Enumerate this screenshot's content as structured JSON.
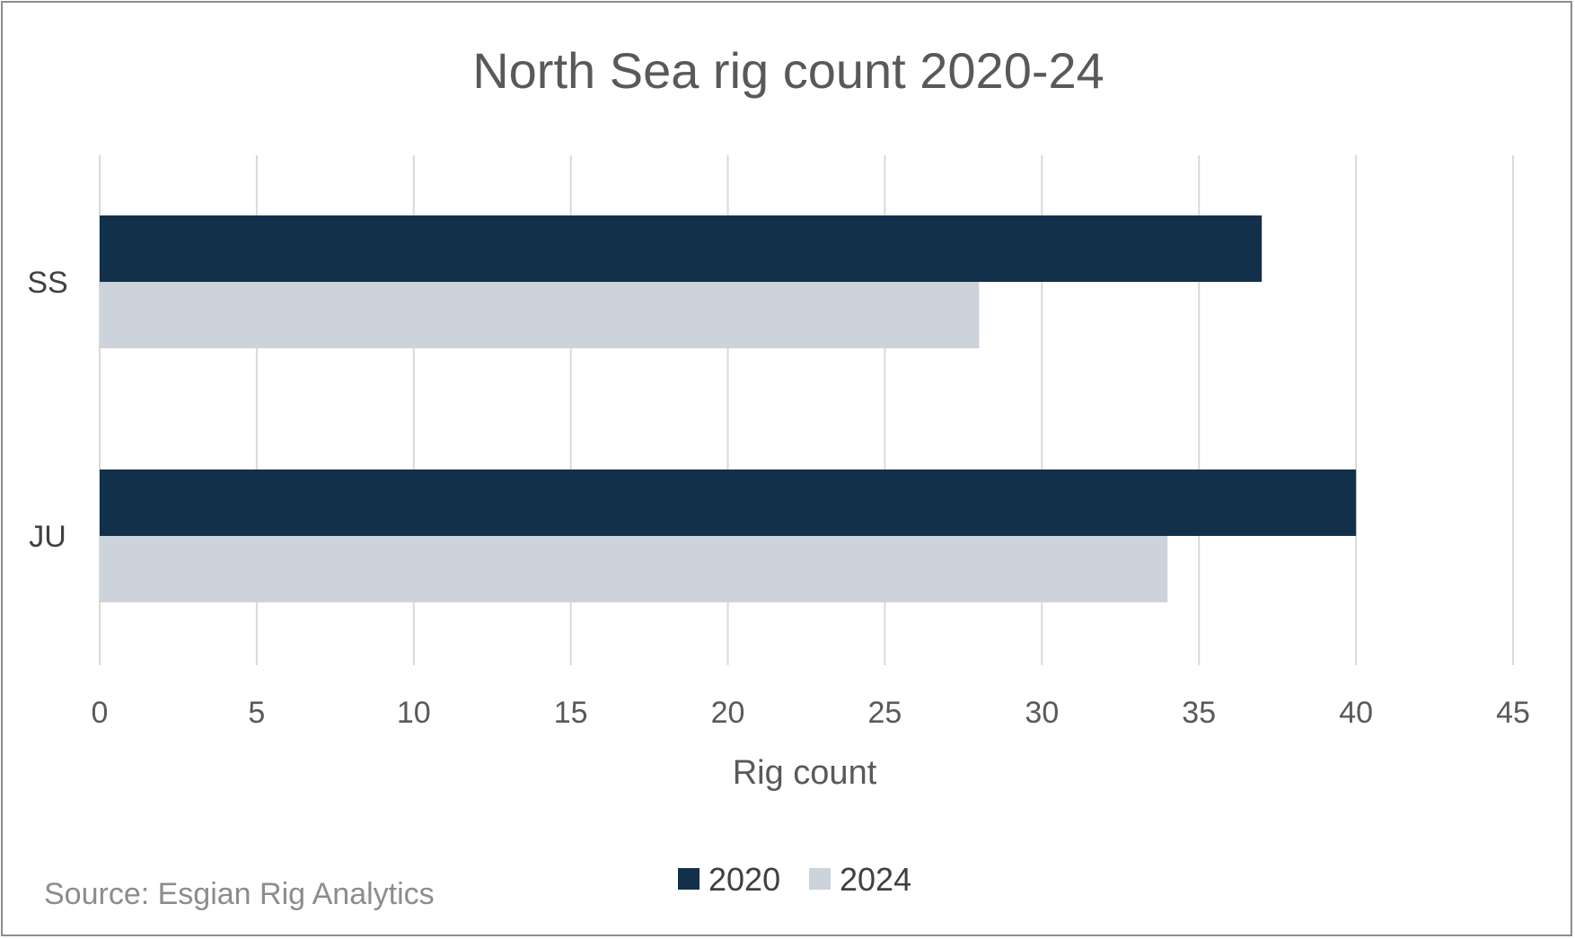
{
  "chart_data": {
    "type": "bar",
    "orientation": "horizontal",
    "title": "North Sea rig count 2020-24",
    "xlabel": "Rig count",
    "ylabel": "",
    "categories": [
      "SS",
      "JU"
    ],
    "series": [
      {
        "name": "2020",
        "values": [
          37,
          40
        ],
        "color": "#13304a"
      },
      {
        "name": "2024",
        "values": [
          28,
          34
        ],
        "color": "#ccd3db"
      }
    ],
    "xlim": [
      0,
      45
    ],
    "xticks": [
      0,
      5,
      10,
      15,
      20,
      25,
      30,
      35,
      40,
      45
    ],
    "grid": true,
    "legend_position": "bottom"
  },
  "source_note": "Source: Esgian Rig Analytics"
}
